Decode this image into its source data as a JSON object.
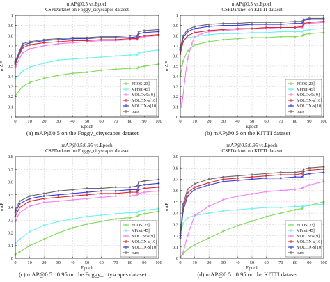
{
  "chart_data": [
    {
      "type": "line",
      "title": "mAP@0.5 vs.Epoch",
      "subtitle": "CSPDarknet on Foggy_cityscapes dataset",
      "xlabel": "Epoch",
      "ylabel": "mAP",
      "xlim": [
        0,
        100
      ],
      "ylim": [
        0,
        1.0
      ],
      "xticks": [
        0,
        10,
        20,
        30,
        40,
        50,
        60,
        70,
        80,
        90,
        100
      ],
      "yticks": [
        0,
        0.1,
        0.2,
        0.3,
        0.4,
        0.5,
        0.6,
        0.7,
        0.8,
        0.9,
        1.0
      ],
      "grid": true,
      "legend": "bottom-right",
      "caption": "(a)  mAP@0.5 on the Foggy_cityscapes dataset",
      "series": [
        {
          "name": "FCOS[23]",
          "color": "#7ed957",
          "x": [
            0,
            5,
            10,
            20,
            30,
            40,
            50,
            60,
            70,
            80,
            85,
            86,
            90,
            100
          ],
          "values": [
            0.21,
            0.3,
            0.34,
            0.38,
            0.41,
            0.43,
            0.44,
            0.46,
            0.47,
            0.48,
            0.48,
            0.49,
            0.5,
            0.52
          ]
        },
        {
          "name": "VFnet[45]",
          "color": "#6ff0f0",
          "x": [
            0,
            5,
            10,
            20,
            30,
            40,
            50,
            60,
            70,
            80,
            85,
            86,
            90,
            100
          ],
          "values": [
            0.38,
            0.45,
            0.49,
            0.53,
            0.56,
            0.57,
            0.58,
            0.59,
            0.6,
            0.61,
            0.61,
            0.63,
            0.64,
            0.66
          ]
        },
        {
          "name": "YOLOv5s[9]",
          "color": "#f27ef2",
          "x": [
            0,
            5,
            10,
            20,
            30,
            40,
            50,
            60,
            70,
            80,
            85,
            86,
            90,
            100
          ],
          "values": [
            0.49,
            0.63,
            0.67,
            0.7,
            0.72,
            0.73,
            0.74,
            0.75,
            0.75,
            0.76,
            0.76,
            0.78,
            0.79,
            0.8
          ]
        },
        {
          "name": "YOLOX-s[10]",
          "color": "#d6282e",
          "x": [
            0,
            5,
            10,
            20,
            30,
            40,
            50,
            60,
            70,
            80,
            85,
            86,
            90,
            100
          ],
          "values": [
            0.52,
            0.68,
            0.71,
            0.73,
            0.74,
            0.75,
            0.75,
            0.76,
            0.76,
            0.77,
            0.77,
            0.79,
            0.8,
            0.81
          ]
        },
        {
          "name": "YOLOX-x[10]",
          "color": "#3b3bd6",
          "x": [
            0,
            5,
            10,
            20,
            30,
            40,
            50,
            60,
            70,
            80,
            85,
            86,
            90,
            100
          ],
          "values": [
            0.54,
            0.7,
            0.73,
            0.75,
            0.76,
            0.77,
            0.77,
            0.78,
            0.78,
            0.78,
            0.79,
            0.82,
            0.83,
            0.84
          ]
        },
        {
          "name": "ours",
          "color": "#666666",
          "x": [
            0,
            5,
            10,
            20,
            30,
            40,
            50,
            60,
            70,
            80,
            85,
            86,
            90,
            100
          ],
          "values": [
            0.55,
            0.72,
            0.74,
            0.76,
            0.77,
            0.78,
            0.78,
            0.79,
            0.79,
            0.8,
            0.8,
            0.84,
            0.85,
            0.86
          ]
        }
      ]
    },
    {
      "type": "line",
      "title": "mAP@0.5 vs.Epoch",
      "subtitle": "CSPDarknet on KITTI dataset",
      "xlabel": "Epoch",
      "ylabel": "mAP",
      "xlim": [
        0,
        100
      ],
      "ylim": [
        0,
        1.0
      ],
      "xticks": [
        0,
        10,
        20,
        30,
        40,
        50,
        60,
        70,
        80,
        90,
        100
      ],
      "yticks": [
        0,
        0.1,
        0.2,
        0.3,
        0.4,
        0.5,
        0.6,
        0.7,
        0.8,
        0.9,
        1.0
      ],
      "grid": true,
      "legend": "bottom-right",
      "caption": "(b)  mAP@0.5 on the KITTI dataset",
      "series": [
        {
          "name": "FCOS[23]",
          "color": "#7ed957",
          "x": [
            0,
            2,
            5,
            10,
            20,
            30,
            40,
            50,
            60,
            70,
            80,
            85,
            86,
            90,
            100
          ],
          "values": [
            0.4,
            0.55,
            0.65,
            0.71,
            0.74,
            0.76,
            0.77,
            0.78,
            0.78,
            0.79,
            0.79,
            0.8,
            0.81,
            0.82,
            0.83
          ]
        },
        {
          "name": "VFnet[45]",
          "color": "#6ff0f0",
          "x": [
            0,
            2,
            5,
            10,
            20,
            30,
            40,
            50,
            60,
            70,
            80,
            85,
            86,
            90,
            100
          ],
          "values": [
            0.66,
            0.75,
            0.78,
            0.79,
            0.81,
            0.82,
            0.82,
            0.83,
            0.83,
            0.84,
            0.84,
            0.84,
            0.85,
            0.86,
            0.87
          ]
        },
        {
          "name": "YOLOv5s[9]",
          "color": "#f27ef2",
          "x": [
            0,
            1,
            3,
            5,
            8,
            10,
            15,
            20,
            30,
            40,
            50,
            60,
            70,
            80,
            85,
            86,
            90,
            100
          ],
          "values": [
            0.18,
            0.1,
            0.35,
            0.57,
            0.72,
            0.79,
            0.82,
            0.84,
            0.85,
            0.86,
            0.87,
            0.87,
            0.88,
            0.88,
            0.88,
            0.91,
            0.92,
            0.93
          ]
        },
        {
          "name": "YOLOX-s[10]",
          "color": "#d6282e",
          "x": [
            0,
            2,
            5,
            10,
            20,
            30,
            40,
            50,
            60,
            70,
            80,
            85,
            86,
            90,
            100
          ],
          "values": [
            0.62,
            0.74,
            0.8,
            0.83,
            0.85,
            0.86,
            0.87,
            0.87,
            0.88,
            0.88,
            0.88,
            0.89,
            0.92,
            0.93,
            0.94
          ]
        },
        {
          "name": "YOLOX-x[10]",
          "color": "#3b3bd6",
          "x": [
            0,
            2,
            5,
            10,
            20,
            30,
            40,
            50,
            60,
            70,
            80,
            85,
            86,
            90,
            100
          ],
          "values": [
            0.66,
            0.78,
            0.84,
            0.87,
            0.89,
            0.9,
            0.9,
            0.91,
            0.91,
            0.91,
            0.92,
            0.92,
            0.95,
            0.96,
            0.96
          ]
        },
        {
          "name": "ours",
          "color": "#666666",
          "x": [
            0,
            2,
            5,
            10,
            20,
            30,
            40,
            50,
            60,
            70,
            80,
            85,
            86,
            90,
            100
          ],
          "values": [
            0.68,
            0.8,
            0.86,
            0.89,
            0.91,
            0.92,
            0.92,
            0.93,
            0.93,
            0.93,
            0.94,
            0.94,
            0.96,
            0.97,
            0.97
          ]
        }
      ]
    },
    {
      "type": "line",
      "title": "mAP@0.5:0.95 vs.Epoch",
      "subtitle": "CSPDarknet on Foggy_cityscapes dataset",
      "xlabel": "Epoch",
      "ylabel": "mAP",
      "xlim": [
        0,
        100
      ],
      "ylim": [
        0,
        0.8
      ],
      "xticks": [
        0,
        10,
        20,
        30,
        40,
        50,
        60,
        70,
        80,
        90,
        100
      ],
      "yticks": [
        0,
        0.1,
        0.2,
        0.3,
        0.4,
        0.5,
        0.6,
        0.7,
        0.8
      ],
      "grid": true,
      "legend": "bottom-right",
      "caption": "(c)  mAP@0.5 : 0.95 on the Foggy_cityscapes dataset",
      "series": [
        {
          "name": "FCOS[23]",
          "color": "#7ed957",
          "x": [
            0,
            3,
            10,
            20,
            30,
            40,
            50,
            60,
            70,
            80,
            85,
            86,
            90,
            100
          ],
          "values": [
            0.03,
            0.05,
            0.1,
            0.15,
            0.2,
            0.24,
            0.27,
            0.29,
            0.31,
            0.32,
            0.33,
            0.34,
            0.35,
            0.37
          ]
        },
        {
          "name": "VFnet[45]",
          "color": "#6ff0f0",
          "x": [
            0,
            3,
            10,
            20,
            30,
            40,
            50,
            60,
            70,
            80,
            85,
            86,
            90,
            100
          ],
          "values": [
            0.12,
            0.15,
            0.21,
            0.26,
            0.29,
            0.31,
            0.33,
            0.34,
            0.35,
            0.36,
            0.36,
            0.37,
            0.38,
            0.39
          ]
        },
        {
          "name": "YOLOv5s[9]",
          "color": "#f27ef2",
          "x": [
            0,
            3,
            10,
            20,
            30,
            40,
            50,
            60,
            70,
            80,
            85,
            86,
            90,
            100
          ],
          "values": [
            0.29,
            0.36,
            0.41,
            0.44,
            0.45,
            0.46,
            0.47,
            0.48,
            0.49,
            0.49,
            0.5,
            0.51,
            0.52,
            0.53
          ]
        },
        {
          "name": "YOLOX-s[10]",
          "color": "#d6282e",
          "x": [
            0,
            3,
            10,
            20,
            30,
            40,
            50,
            60,
            70,
            80,
            85,
            86,
            90,
            100
          ],
          "values": [
            0.33,
            0.4,
            0.45,
            0.47,
            0.48,
            0.49,
            0.5,
            0.51,
            0.51,
            0.52,
            0.52,
            0.54,
            0.55,
            0.56
          ]
        },
        {
          "name": "YOLOX-x[10]",
          "color": "#3b3bd6",
          "x": [
            0,
            3,
            10,
            20,
            30,
            40,
            50,
            60,
            70,
            80,
            85,
            86,
            90,
            100
          ],
          "values": [
            0.36,
            0.43,
            0.47,
            0.49,
            0.5,
            0.51,
            0.52,
            0.53,
            0.53,
            0.54,
            0.54,
            0.57,
            0.58,
            0.59
          ]
        },
        {
          "name": "ours",
          "color": "#666666",
          "x": [
            0,
            3,
            10,
            20,
            30,
            40,
            50,
            60,
            70,
            80,
            85,
            86,
            90,
            100
          ],
          "values": [
            0.38,
            0.45,
            0.49,
            0.51,
            0.53,
            0.54,
            0.55,
            0.55,
            0.56,
            0.56,
            0.57,
            0.6,
            0.61,
            0.62
          ]
        }
      ]
    },
    {
      "type": "line",
      "title": "mAP@0.5:0.95 vs.Epoch",
      "subtitle": "CSPDarknet on KITTI dataset",
      "xlabel": "Epoch",
      "ylabel": "mAP",
      "xlim": [
        0,
        100
      ],
      "ylim": [
        0,
        0.9
      ],
      "xticks": [
        0,
        10,
        20,
        30,
        40,
        50,
        60,
        70,
        80,
        90,
        100
      ],
      "yticks": [
        0,
        0.1,
        0.2,
        0.3,
        0.4,
        0.5,
        0.6,
        0.7,
        0.8,
        0.9
      ],
      "grid": true,
      "legend": "bottom-right",
      "caption": "(d)  mAP@0.5 : 0.95 on the KITTI dataset",
      "series": [
        {
          "name": "FCOS[23]",
          "color": "#7ed957",
          "x": [
            0,
            2,
            5,
            10,
            20,
            30,
            40,
            50,
            60,
            70,
            80,
            85,
            86,
            90,
            100
          ],
          "values": [
            0.01,
            0.04,
            0.08,
            0.12,
            0.18,
            0.24,
            0.29,
            0.33,
            0.37,
            0.4,
            0.43,
            0.44,
            0.46,
            0.47,
            0.5
          ]
        },
        {
          "name": "VFnet[45]",
          "color": "#6ff0f0",
          "x": [
            0,
            2,
            5,
            10,
            20,
            30,
            40,
            50,
            60,
            70,
            80,
            85,
            86,
            90,
            100
          ],
          "values": [
            0.22,
            0.31,
            0.36,
            0.38,
            0.4,
            0.42,
            0.43,
            0.44,
            0.45,
            0.45,
            0.46,
            0.46,
            0.46,
            0.47,
            0.48
          ]
        },
        {
          "name": "YOLOv5s[9]",
          "color": "#f27ef2",
          "x": [
            0,
            2,
            5,
            10,
            20,
            30,
            40,
            50,
            60,
            70,
            80,
            85,
            86,
            90,
            100
          ],
          "values": [
            0.01,
            0.05,
            0.2,
            0.38,
            0.46,
            0.52,
            0.55,
            0.57,
            0.59,
            0.6,
            0.61,
            0.62,
            0.63,
            0.65,
            0.68
          ]
        },
        {
          "name": "YOLOX-s[10]",
          "color": "#d6282e",
          "x": [
            0,
            2,
            5,
            10,
            20,
            30,
            40,
            50,
            60,
            70,
            80,
            85,
            86,
            90,
            100
          ],
          "values": [
            0.2,
            0.45,
            0.58,
            0.63,
            0.67,
            0.7,
            0.71,
            0.72,
            0.73,
            0.74,
            0.74,
            0.75,
            0.77,
            0.78,
            0.79
          ]
        },
        {
          "name": "YOLOX-x[10]",
          "color": "#3b3bd6",
          "x": [
            0,
            2,
            5,
            10,
            20,
            30,
            40,
            50,
            60,
            70,
            80,
            85,
            86,
            90,
            100
          ],
          "values": [
            0.18,
            0.42,
            0.55,
            0.61,
            0.65,
            0.68,
            0.69,
            0.7,
            0.71,
            0.71,
            0.72,
            0.72,
            0.74,
            0.75,
            0.76
          ]
        },
        {
          "name": "ours",
          "color": "#666666",
          "x": [
            0,
            2,
            5,
            10,
            20,
            30,
            40,
            50,
            60,
            70,
            80,
            85,
            86,
            90,
            100
          ],
          "values": [
            0.22,
            0.48,
            0.61,
            0.66,
            0.7,
            0.72,
            0.73,
            0.74,
            0.75,
            0.76,
            0.76,
            0.77,
            0.79,
            0.8,
            0.81
          ]
        }
      ]
    }
  ]
}
